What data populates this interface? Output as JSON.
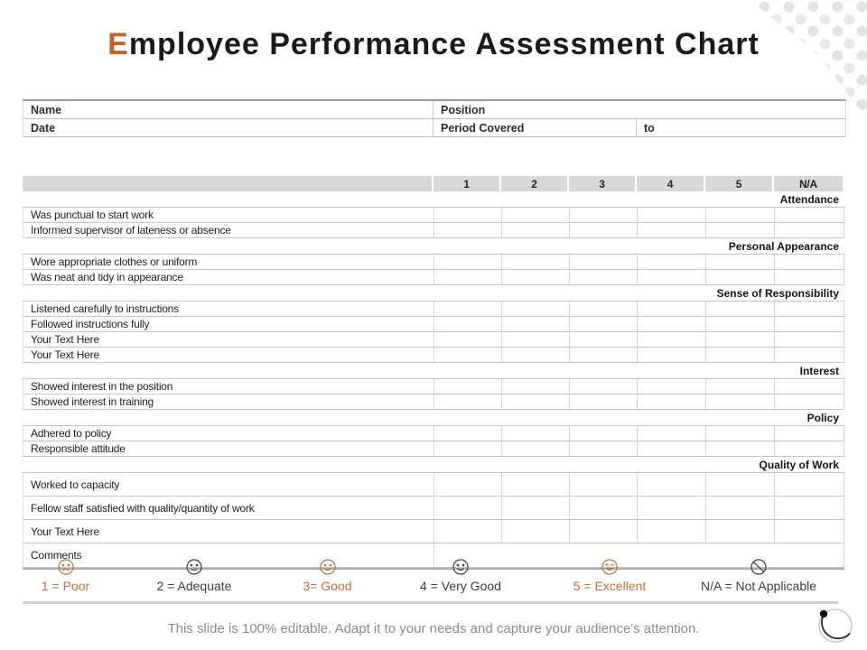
{
  "title": {
    "first_letter": "E",
    "rest": "mployee Performance Assessment Chart"
  },
  "info_table": {
    "name_label": "Name",
    "position_label": "Position",
    "date_label": "Date",
    "period_label": "Period Covered",
    "to_label": "to"
  },
  "assessment_table": {
    "rating_headers": [
      "1",
      "2",
      "3",
      "4",
      "5",
      "N/A"
    ],
    "rows": [
      {
        "type": "section",
        "label": "Attendance"
      },
      {
        "type": "item",
        "label": "Was punctual to start work"
      },
      {
        "type": "item",
        "label": "Informed supervisor of lateness or absence"
      },
      {
        "type": "section",
        "label": "Personal Appearance"
      },
      {
        "type": "item",
        "label": "Wore appropriate clothes or uniform"
      },
      {
        "type": "item",
        "label": "Was neat and tidy in appearance"
      },
      {
        "type": "section",
        "label": "Sense of Responsibility"
      },
      {
        "type": "item",
        "label": "Listened carefully to instructions"
      },
      {
        "type": "item",
        "label": "Followed instructions fully"
      },
      {
        "type": "item",
        "label": "Your Text Here"
      },
      {
        "type": "item",
        "label": "Your Text Here"
      },
      {
        "type": "section",
        "label": "Interest"
      },
      {
        "type": "item",
        "label": "Showed interest in the position"
      },
      {
        "type": "item",
        "label": "Showed interest in training"
      },
      {
        "type": "section",
        "label": "Policy"
      },
      {
        "type": "item",
        "label": "Adhered to policy"
      },
      {
        "type": "item",
        "label": "Responsible attitude"
      },
      {
        "type": "section",
        "label": "Quality of Work"
      },
      {
        "type": "item-tall",
        "label": "Worked to capacity"
      },
      {
        "type": "item-tall",
        "label": "Fellow staff satisfied with quality/quantity of work"
      },
      {
        "type": "item-tall",
        "label": "Your Text Here"
      },
      {
        "type": "comments",
        "label": "Comments"
      }
    ]
  },
  "legend": {
    "items": [
      {
        "label": "1 = Poor",
        "icon": "frown-face-icon",
        "tone": "accent"
      },
      {
        "label": "2 = Adequate",
        "icon": "neutral-face-icon",
        "tone": "dark"
      },
      {
        "label": "3= Good",
        "icon": "smile-face-icon",
        "tone": "accent"
      },
      {
        "label": "4 = Very Good",
        "icon": "smile-face-icon",
        "tone": "dark"
      },
      {
        "label": "5 = Excellent",
        "icon": "grin-face-icon",
        "tone": "accent"
      },
      {
        "label": "N/A = Not Applicable",
        "icon": "not-applicable-icon",
        "tone": "dark"
      }
    ]
  },
  "footer": {
    "note": "This slide is 100% editable. Adapt it to your needs and capture your audience's attention."
  },
  "colors": {
    "accent": "#C6632A",
    "legend_accent_text": "#BF6F3A",
    "legend_dark_text": "#3D3D3D",
    "header_fill": "#D8D8D8",
    "grid_line": "#C6C6C6",
    "dot_pattern": "#E4E4E4"
  }
}
